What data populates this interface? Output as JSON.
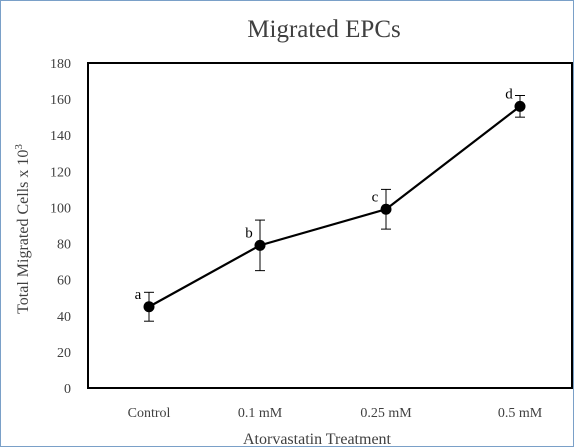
{
  "chart_data": {
    "type": "line",
    "title": "Migrated EPCs",
    "xlabel": "Atorvastatin Treatment",
    "ylabel": "Total Migrated Cells x 10",
    "ylabel_superscript": "3",
    "categories": [
      "Control",
      "0.1 mM",
      "0.25 mM",
      "0.5 mM"
    ],
    "ylim": [
      0,
      180
    ],
    "yticks": [
      0,
      20,
      40,
      60,
      80,
      100,
      120,
      140,
      160,
      180
    ],
    "grid": false,
    "legend": "none",
    "series": [
      {
        "values": [
          45,
          79,
          99,
          156
        ],
        "error_low": [
          37,
          65,
          88,
          150
        ],
        "error_high": [
          53,
          93,
          110,
          162
        ],
        "point_labels": [
          "a",
          "b",
          "c",
          "d"
        ]
      }
    ]
  },
  "colors": {
    "line": "#000000",
    "frame_border": "#7aa0c8",
    "text": "#404040"
  }
}
